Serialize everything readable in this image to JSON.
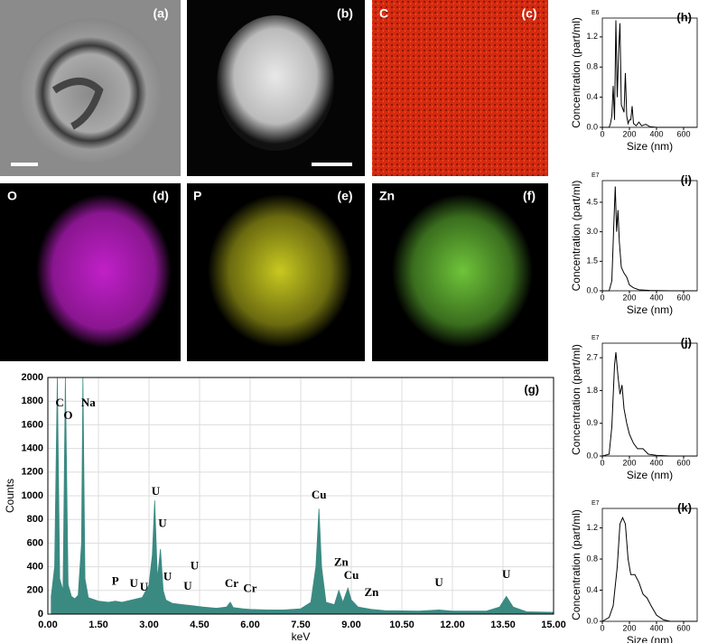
{
  "image_panels": [
    {
      "label": "(a)"
    },
    {
      "label": "(b)"
    },
    {
      "element": "C",
      "label": "(c)"
    },
    {
      "element": "O",
      "label": "(d)"
    },
    {
      "element": "P",
      "label": "(e)"
    },
    {
      "element": "Zn",
      "label": "(f)"
    }
  ],
  "chart_data": [
    {
      "type": "area",
      "panel": "(g)",
      "xlabel": "keV",
      "ylabel": "Counts",
      "color": "#3b8a82",
      "grid": true,
      "x": [
        0.1,
        0.2,
        0.28,
        0.35,
        0.45,
        0.52,
        0.6,
        0.7,
        0.8,
        0.9,
        1.0,
        1.04,
        1.1,
        1.2,
        1.5,
        1.8,
        2.0,
        2.2,
        2.5,
        2.8,
        3.0,
        3.1,
        3.17,
        3.25,
        3.34,
        3.42,
        3.5,
        3.7,
        4.0,
        4.3,
        4.6,
        5.0,
        5.3,
        5.41,
        5.5,
        5.8,
        6.0,
        6.5,
        7.0,
        7.5,
        7.8,
        7.95,
        8.04,
        8.12,
        8.25,
        8.5,
        8.63,
        8.75,
        8.9,
        9.0,
        9.2,
        9.6,
        10.0,
        11.0,
        11.6,
        12.0,
        13.0,
        13.4,
        13.6,
        13.8,
        14.2,
        15.0
      ],
      "values": [
        150,
        400,
        2000,
        300,
        200,
        2000,
        250,
        150,
        130,
        160,
        600,
        2000,
        300,
        140,
        110,
        100,
        110,
        100,
        120,
        140,
        250,
        500,
        960,
        300,
        550,
        200,
        120,
        90,
        80,
        70,
        60,
        50,
        60,
        100,
        55,
        45,
        40,
        35,
        35,
        45,
        100,
        400,
        890,
        400,
        100,
        80,
        200,
        100,
        220,
        120,
        60,
        40,
        30,
        25,
        35,
        25,
        25,
        60,
        150,
        60,
        20,
        15
      ],
      "xlim": [
        0,
        15
      ],
      "ylim": [
        0,
        2000
      ],
      "xticks": [
        {
          "value": 0,
          "label": "0.00"
        },
        {
          "value": 1.5,
          "label": "1.50"
        },
        {
          "value": 3,
          "label": "3.00"
        },
        {
          "value": 4.5,
          "label": "4.50"
        },
        {
          "value": 6,
          "label": "6.00"
        },
        {
          "value": 7.5,
          "label": "7.50"
        },
        {
          "value": 9,
          "label": "9.00"
        },
        {
          "value": 10.5,
          "label": "10.50"
        },
        {
          "value": 12,
          "label": "12.00"
        },
        {
          "value": 13.5,
          "label": "13.50"
        },
        {
          "value": 15,
          "label": "15.00"
        }
      ],
      "yticks": [
        0,
        200,
        400,
        600,
        800,
        1000,
        1200,
        1400,
        1600,
        1800,
        2000
      ],
      "annotations": [
        {
          "text": "C",
          "x": 0.35,
          "y": 1780
        },
        {
          "text": "O",
          "x": 0.6,
          "y": 1670
        },
        {
          "text": "Na",
          "x": 1.2,
          "y": 1780
        },
        {
          "text": "P",
          "x": 2.0,
          "y": 270
        },
        {
          "text": "U",
          "x": 2.55,
          "y": 250
        },
        {
          "text": "U",
          "x": 2.85,
          "y": 220
        },
        {
          "text": "U",
          "x": 3.2,
          "y": 1030
        },
        {
          "text": "U",
          "x": 3.4,
          "y": 760
        },
        {
          "text": "U",
          "x": 3.55,
          "y": 310
        },
        {
          "text": "U",
          "x": 4.15,
          "y": 230
        },
        {
          "text": "U",
          "x": 4.35,
          "y": 400
        },
        {
          "text": "Cr",
          "x": 5.45,
          "y": 250
        },
        {
          "text": "Cr",
          "x": 6.0,
          "y": 210
        },
        {
          "text": "Cu",
          "x": 8.04,
          "y": 1000
        },
        {
          "text": "Zn",
          "x": 8.7,
          "y": 430
        },
        {
          "text": "Cu",
          "x": 9.0,
          "y": 320
        },
        {
          "text": "Zn",
          "x": 9.6,
          "y": 175
        },
        {
          "text": "U",
          "x": 11.6,
          "y": 260
        },
        {
          "text": "U",
          "x": 13.6,
          "y": 330
        }
      ]
    },
    {
      "type": "line",
      "panel": "(h)",
      "xlabel": "Size (nm)",
      "ylabel": "Concentration (part/ml)",
      "y_multiplier": "E6",
      "color": "#000000",
      "x": [
        0,
        50,
        60,
        70,
        80,
        90,
        100,
        110,
        120,
        130,
        140,
        150,
        160,
        170,
        180,
        190,
        200,
        210,
        220,
        230,
        250,
        270,
        290,
        320,
        350,
        400,
        500,
        700
      ],
      "values": [
        0,
        0,
        0.05,
        0.15,
        0.55,
        0.1,
        1.42,
        0.4,
        1.0,
        1.38,
        0.3,
        0.25,
        0.2,
        0.72,
        0.15,
        0.05,
        0.1,
        0.1,
        0.28,
        0.05,
        0.02,
        0.07,
        0.02,
        0.04,
        0.01,
        0,
        0,
        0
      ],
      "xlim": [
        0,
        700
      ],
      "ylim": [
        0,
        1.45
      ],
      "xticks": [
        0,
        200,
        400,
        600
      ],
      "yticks": [
        {
          "value": 0,
          "label": "0.0"
        },
        0.4,
        0.8,
        1.2
      ]
    },
    {
      "type": "line",
      "panel": "(i)",
      "xlabel": "Size (nm)",
      "ylabel": "Concentration (part/ml)",
      "y_multiplier": "E7",
      "color": "#000000",
      "x": [
        0,
        50,
        70,
        85,
        95,
        105,
        115,
        125,
        140,
        160,
        180,
        200,
        230,
        270,
        350,
        500,
        700
      ],
      "values": [
        0,
        0,
        0.5,
        3.5,
        5.3,
        3.0,
        4.1,
        2.5,
        1.2,
        0.9,
        0.7,
        0.3,
        0.15,
        0.05,
        0.02,
        0,
        0
      ],
      "xlim": [
        0,
        700
      ],
      "ylim": [
        0,
        5.6
      ],
      "xticks": [
        0,
        200,
        400,
        600
      ],
      "yticks": [
        {
          "value": 0,
          "label": "0.0"
        },
        1.5,
        {
          "value": 3,
          "label": "3.0"
        },
        4.5
      ]
    },
    {
      "type": "line",
      "panel": "(j)",
      "xlabel": "Size (nm)",
      "ylabel": "Concentration (part/ml)",
      "y_multiplier": "E7",
      "color": "#000000",
      "x": [
        0,
        50,
        70,
        90,
        100,
        115,
        130,
        145,
        160,
        180,
        200,
        230,
        260,
        300,
        340,
        400,
        500,
        700
      ],
      "values": [
        0,
        0.05,
        0.8,
        2.5,
        2.85,
        2.2,
        1.7,
        1.95,
        1.3,
        0.9,
        0.6,
        0.35,
        0.2,
        0.2,
        0.05,
        0.02,
        0,
        0
      ],
      "xlim": [
        0,
        700
      ],
      "ylim": [
        0,
        3.1
      ],
      "xticks": [
        0,
        200,
        400,
        600
      ],
      "yticks": [
        {
          "value": 0,
          "label": "0.0"
        },
        0.9,
        1.8,
        2.7
      ]
    },
    {
      "type": "line",
      "panel": "(k)",
      "xlabel": "Size (nm)",
      "ylabel": "Concentration (part/ml)",
      "y_multiplier": "E7",
      "color": "#000000",
      "x": [
        0,
        50,
        80,
        110,
        130,
        150,
        170,
        190,
        210,
        240,
        270,
        300,
        330,
        360,
        400,
        450,
        500,
        700
      ],
      "values": [
        0,
        0.05,
        0.2,
        0.7,
        1.25,
        1.33,
        1.25,
        0.8,
        0.6,
        0.6,
        0.5,
        0.35,
        0.3,
        0.2,
        0.08,
        0.02,
        0,
        0
      ],
      "xlim": [
        0,
        700
      ],
      "ylim": [
        0,
        1.45
      ],
      "xticks": [
        0,
        200,
        400,
        600
      ],
      "yticks": [
        {
          "value": 0,
          "label": "0.0"
        },
        0.4,
        0.8,
        1.2
      ]
    }
  ]
}
